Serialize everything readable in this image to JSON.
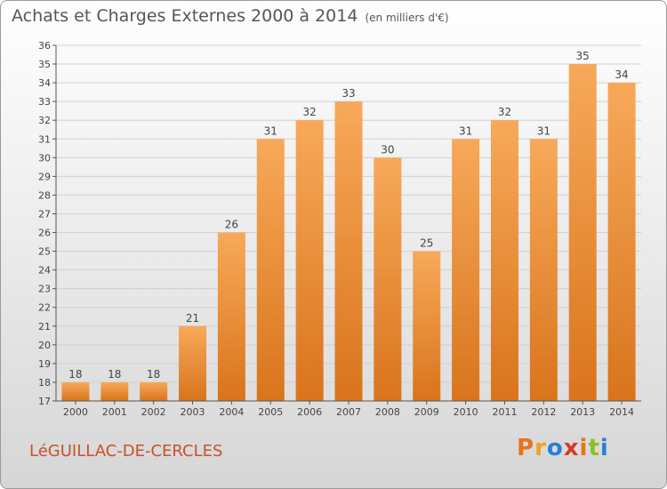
{
  "title": "Achats et Charges Externes 2000 à 2014",
  "subtitle": "(en milliers d'€)",
  "commune": "LéGUILLAC-DE-CERCLES",
  "brand": {
    "letters": [
      "P",
      "r",
      "o",
      "x",
      "i",
      "t",
      "i"
    ],
    "colors": [
      "#e8731a",
      "#f0a020",
      "#2a7fd4",
      "#d7392b",
      "#e8731a",
      "#8bbf2a",
      "#2a7fd4"
    ]
  },
  "colors": {
    "bar_top": "#f7a95a",
    "bar_bottom": "#d9741c",
    "axis": "#555555",
    "grid": "#d0d0d0",
    "text": "#444444",
    "title": "#555555",
    "commune": "#c8502a"
  },
  "chart_data": {
    "type": "bar",
    "title": "Achats et Charges Externes 2000 à 2014",
    "subtitle": "(en milliers d'€)",
    "categories": [
      "2000",
      "2001",
      "2002",
      "2003",
      "2004",
      "2005",
      "2006",
      "2007",
      "2008",
      "2009",
      "2010",
      "2011",
      "2012",
      "2013",
      "2014"
    ],
    "values": [
      18,
      18,
      18,
      21,
      26,
      31,
      32,
      33,
      30,
      25,
      31,
      32,
      31,
      35,
      34
    ],
    "ylim": [
      17,
      36
    ],
    "yticks": [
      17,
      18,
      19,
      20,
      21,
      22,
      23,
      24,
      25,
      26,
      27,
      28,
      29,
      30,
      31,
      32,
      33,
      34,
      35,
      36
    ],
    "data_labels": true,
    "grid": true,
    "xlabel": "",
    "ylabel": ""
  }
}
